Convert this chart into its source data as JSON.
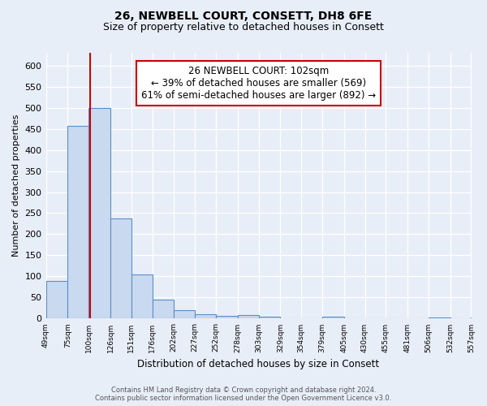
{
  "title": "26, NEWBELL COURT, CONSETT, DH8 6FE",
  "subtitle": "Size of property relative to detached houses in Consett",
  "xlabel": "Distribution of detached houses by size in Consett",
  "ylabel": "Number of detached properties",
  "bin_edges": [
    49,
    75,
    100,
    126,
    151,
    176,
    202,
    227,
    252,
    278,
    303,
    329,
    354,
    379,
    405,
    430,
    455,
    481,
    506,
    532,
    557
  ],
  "bin_labels": [
    "49sqm",
    "75sqm",
    "100sqm",
    "126sqm",
    "151sqm",
    "176sqm",
    "202sqm",
    "227sqm",
    "252sqm",
    "278sqm",
    "303sqm",
    "329sqm",
    "354sqm",
    "379sqm",
    "405sqm",
    "430sqm",
    "455sqm",
    "481sqm",
    "506sqm",
    "532sqm",
    "557sqm"
  ],
  "counts": [
    90,
    457,
    500,
    237,
    105,
    45,
    20,
    10,
    7,
    8,
    5,
    0,
    0,
    4,
    0,
    0,
    0,
    0,
    2,
    0,
    2
  ],
  "bar_color": "#c9d9ef",
  "bar_edge_color": "#5b8fc9",
  "property_size": 102,
  "property_line_color": "#cc0000",
  "annotation_title": "26 NEWBELL COURT: 102sqm",
  "annotation_line1": "← 39% of detached houses are smaller (569)",
  "annotation_line2": "61% of semi-detached houses are larger (892) →",
  "annotation_box_color": "#ffffff",
  "annotation_box_edge": "#cc0000",
  "footer_line1": "Contains HM Land Registry data © Crown copyright and database right 2024.",
  "footer_line2": "Contains public sector information licensed under the Open Government Licence v3.0.",
  "ylim": [
    0,
    630
  ],
  "yticks": [
    0,
    50,
    100,
    150,
    200,
    250,
    300,
    350,
    400,
    450,
    500,
    550,
    600
  ],
  "bg_color": "#e8eef8",
  "grid_color": "#ffffff",
  "title_fontsize": 10,
  "subtitle_fontsize": 9
}
